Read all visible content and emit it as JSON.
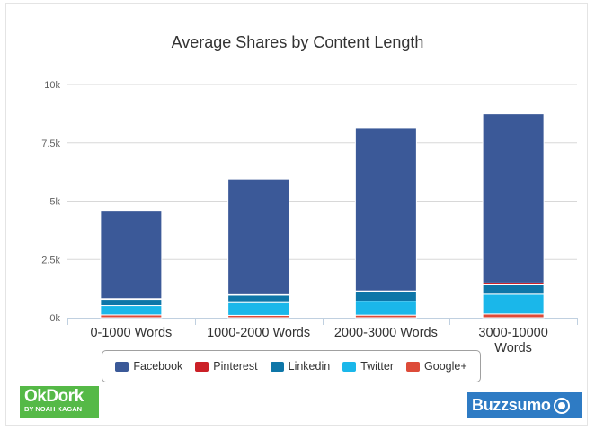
{
  "chart_data": {
    "type": "bar",
    "stacked": true,
    "title": "Average Shares by Content Length",
    "categories": [
      "0-1000 Words",
      "1000-2000 Words",
      "2000-3000 Words",
      "3000-10000 Words"
    ],
    "category_lines": [
      [
        "0-1000 Words"
      ],
      [
        "1000-2000 Words"
      ],
      [
        "2000-3000 Words"
      ],
      [
        "3000-10000",
        "Words"
      ]
    ],
    "yticks": [
      {
        "value": 0,
        "label": "0k"
      },
      {
        "value": 2500,
        "label": "2.5k"
      },
      {
        "value": 5000,
        "label": "5k"
      },
      {
        "value": 7500,
        "label": "7.5k"
      },
      {
        "value": 10000,
        "label": "10k"
      }
    ],
    "ylim": [
      0,
      10000
    ],
    "grid": true,
    "legend_position": "bottom",
    "series": [
      {
        "name": "Facebook",
        "color": "#3b5998",
        "values": [
          3750,
          4950,
          7000,
          7250
        ]
      },
      {
        "name": "Pinterest",
        "color": "#cb2027",
        "values": [
          30,
          20,
          20,
          80
        ]
      },
      {
        "name": "Linkedin",
        "color": "#0e76a8",
        "values": [
          270,
          320,
          420,
          400
        ]
      },
      {
        "name": "Twitter",
        "color": "#1ab7ea",
        "values": [
          400,
          550,
          600,
          850
        ]
      },
      {
        "name": "Google+",
        "color": "#dd4b39",
        "values": [
          120,
          100,
          110,
          160
        ]
      }
    ]
  },
  "logos": {
    "okdork_main": "OkDork",
    "okdork_sub": "BY NOAH KAGAN",
    "buzzsumo": "Buzzsumo"
  }
}
